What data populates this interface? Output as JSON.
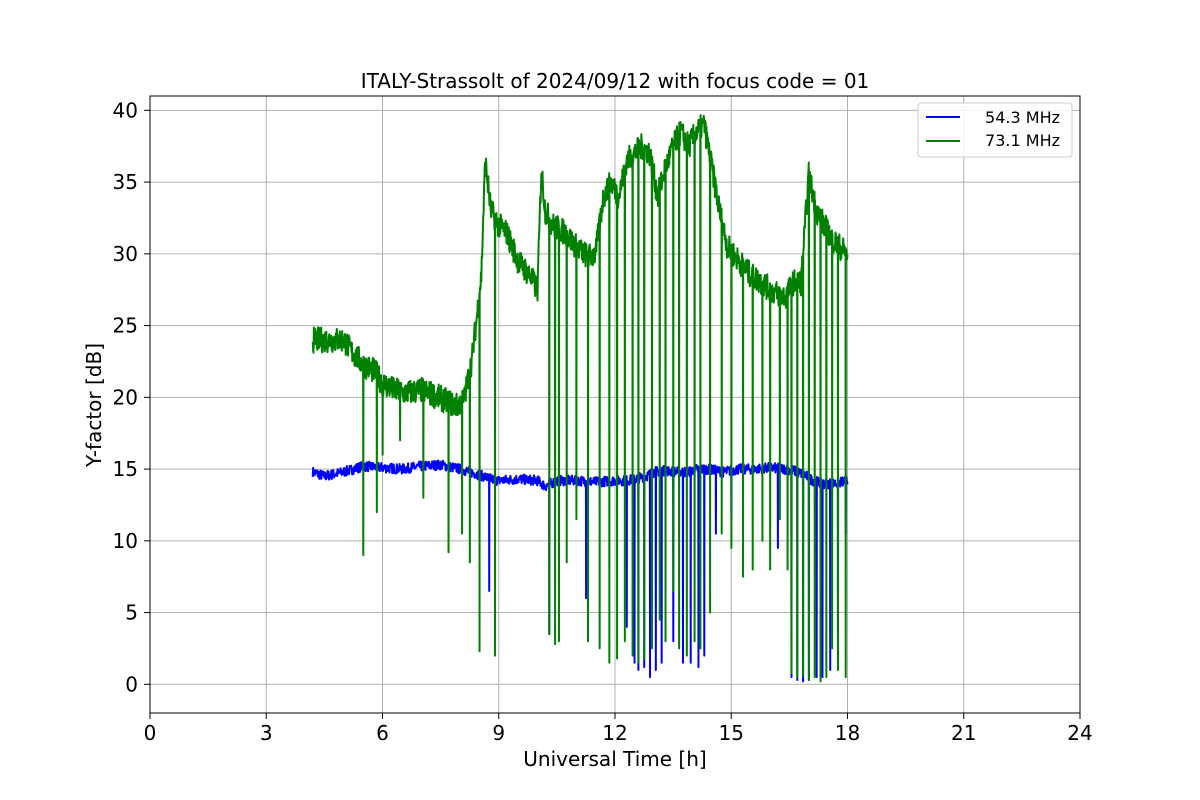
{
  "chart_data": {
    "type": "line",
    "title": "ITALY-Strassolt of 2024/09/12 with focus code = 01",
    "xlabel": "Universal Time [h]",
    "ylabel": "Y-factor [dB]",
    "xlim": [
      0,
      24
    ],
    "ylim": [
      -2,
      41
    ],
    "xticks": [
      0,
      3,
      6,
      9,
      12,
      15,
      18,
      21,
      24
    ],
    "yticks": [
      0,
      5,
      10,
      15,
      20,
      25,
      30,
      35,
      40
    ],
    "grid": true,
    "legend_position": "top-right",
    "series": [
      {
        "name": "54.3 MHz",
        "color": "#0000ff",
        "x": [
          4.2,
          4.5,
          5.0,
          5.5,
          6.0,
          6.5,
          7.0,
          7.5,
          8.0,
          8.5,
          8.8,
          9.0,
          9.5,
          10.0,
          10.2,
          10.5,
          11.0,
          11.5,
          12.0,
          12.3,
          12.5,
          12.8,
          13.0,
          13.3,
          13.6,
          13.9,
          14.1,
          14.4,
          14.8,
          15.2,
          15.6,
          16.0,
          16.4,
          16.6,
          16.9,
          17.1,
          17.4,
          17.7,
          18.0
        ],
        "y": [
          14.8,
          14.5,
          14.8,
          15.2,
          15.1,
          15.0,
          15.2,
          15.3,
          15.0,
          14.6,
          14.3,
          14.2,
          14.3,
          14.2,
          13.8,
          14.2,
          14.2,
          14.1,
          14.2,
          14.2,
          14.3,
          14.5,
          14.8,
          14.9,
          14.8,
          14.8,
          15.0,
          15.0,
          14.8,
          15.0,
          15.0,
          15.1,
          15.0,
          14.9,
          14.6,
          14.2,
          14.0,
          14.0,
          14.2
        ],
        "dips": [
          [
            8.75,
            6.5
          ],
          [
            10.3,
            3.5
          ],
          [
            11.25,
            6.0
          ],
          [
            12.3,
            4.0
          ],
          [
            12.5,
            1.5
          ],
          [
            12.6,
            1.0
          ],
          [
            12.75,
            1.2
          ],
          [
            12.9,
            0.5
          ],
          [
            13.05,
            1.0
          ],
          [
            13.2,
            1.5
          ],
          [
            13.5,
            3.0
          ],
          [
            13.75,
            1.5
          ],
          [
            13.95,
            1.5
          ],
          [
            14.15,
            1.2
          ],
          [
            14.3,
            2.0
          ],
          [
            14.6,
            10.5
          ],
          [
            15.0,
            11.5
          ],
          [
            16.2,
            9.5
          ],
          [
            16.55,
            0.5
          ],
          [
            16.7,
            0.3
          ],
          [
            16.85,
            0.2
          ],
          [
            17.0,
            0.3
          ],
          [
            17.2,
            0.5
          ],
          [
            17.35,
            0.5
          ],
          [
            17.55,
            1.0
          ],
          [
            17.75,
            1.5
          ],
          [
            17.95,
            10.5
          ]
        ]
      },
      {
        "name": "73.1 MHz",
        "color": "#008000",
        "x": [
          4.2,
          4.6,
          5.0,
          5.2,
          5.5,
          5.8,
          6.0,
          6.3,
          6.6,
          7.0,
          7.3,
          7.6,
          7.9,
          8.1,
          8.3,
          8.45,
          8.55,
          8.65,
          8.8,
          9.0,
          9.2,
          9.5,
          9.8,
          10.0,
          10.1,
          10.2,
          10.4,
          10.7,
          11.0,
          11.3,
          11.5,
          11.7,
          11.9,
          12.1,
          12.3,
          12.5,
          12.7,
          12.9,
          13.1,
          13.3,
          13.5,
          13.7,
          13.9,
          14.1,
          14.3,
          14.5,
          14.7,
          14.9,
          15.2,
          15.5,
          15.8,
          16.0,
          16.2,
          16.4,
          16.6,
          16.8,
          17.0,
          17.2,
          17.4,
          17.6,
          17.8,
          18.0
        ],
        "y": [
          24.0,
          24.0,
          24.0,
          23.2,
          22.3,
          21.8,
          21.0,
          20.5,
          20.3,
          20.5,
          20.2,
          19.8,
          19.4,
          19.8,
          22.5,
          26.0,
          28.5,
          36.5,
          33.0,
          32.0,
          31.5,
          29.5,
          28.5,
          27.5,
          36.0,
          33.0,
          32.0,
          31.5,
          30.5,
          29.8,
          30.0,
          34.0,
          35.0,
          34.0,
          36.5,
          37.0,
          37.5,
          37.0,
          34.0,
          36.0,
          37.5,
          38.5,
          37.5,
          38.5,
          39.0,
          36.0,
          33.0,
          30.5,
          29.5,
          28.5,
          28.0,
          27.5,
          27.2,
          27.0,
          28.0,
          28.0,
          35.5,
          33.0,
          32.0,
          31.0,
          30.5,
          30.0
        ],
        "dips": [
          [
            5.5,
            9.0
          ],
          [
            5.85,
            12.0
          ],
          [
            6.0,
            16.0
          ],
          [
            6.45,
            17.0
          ],
          [
            7.05,
            13.0
          ],
          [
            7.7,
            9.2
          ],
          [
            8.05,
            10.5
          ],
          [
            8.25,
            8.5
          ],
          [
            8.5,
            2.3
          ],
          [
            8.9,
            2.0
          ],
          [
            10.3,
            3.5
          ],
          [
            10.45,
            2.8
          ],
          [
            10.55,
            3.0
          ],
          [
            10.75,
            8.5
          ],
          [
            11.0,
            11.5
          ],
          [
            11.3,
            3.0
          ],
          [
            11.6,
            2.5
          ],
          [
            11.85,
            1.5
          ],
          [
            12.05,
            1.8
          ],
          [
            12.25,
            3.0
          ],
          [
            12.45,
            2.0
          ],
          [
            12.6,
            1.5
          ],
          [
            12.75,
            1.8
          ],
          [
            12.95,
            2.5
          ],
          [
            13.15,
            4.5
          ],
          [
            13.3,
            3.0
          ],
          [
            13.5,
            6.5
          ],
          [
            13.65,
            2.5
          ],
          [
            13.85,
            2.0
          ],
          [
            14.05,
            3.0
          ],
          [
            14.2,
            2.5
          ],
          [
            14.45,
            5.0
          ],
          [
            14.75,
            10.5
          ],
          [
            15.0,
            9.5
          ],
          [
            15.3,
            7.5
          ],
          [
            15.55,
            8.0
          ],
          [
            15.8,
            10.0
          ],
          [
            16.0,
            8.0
          ],
          [
            16.25,
            11.5
          ],
          [
            16.45,
            8.0
          ],
          [
            16.55,
            0.8
          ],
          [
            16.7,
            0.5
          ],
          [
            16.85,
            0.6
          ],
          [
            17.0,
            0.3
          ],
          [
            17.15,
            0.5
          ],
          [
            17.3,
            0.2
          ],
          [
            17.45,
            0.5
          ],
          [
            17.6,
            2.5
          ],
          [
            17.75,
            1.0
          ],
          [
            17.95,
            0.5
          ]
        ]
      }
    ]
  }
}
